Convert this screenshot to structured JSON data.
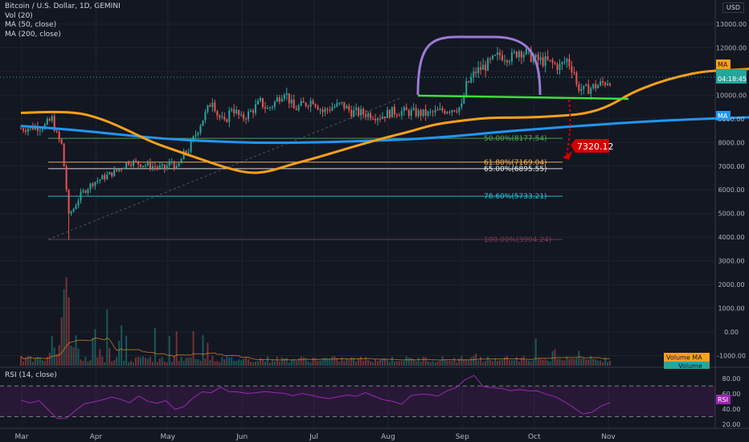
{
  "header": {
    "symbol_title": "Bitcoin / U.S. Dollar, 1D, GEMINI",
    "indicators": [
      "Vol (20)",
      "MA (50, close)",
      "MA (200, close)"
    ],
    "currency": "USD"
  },
  "rsi_panel": {
    "title": "RSI (14, close)",
    "badge": "RSI",
    "ticks": [
      "80.00",
      "60.00",
      "40.00",
      "20.00"
    ]
  },
  "price_tag": {
    "value": "7320.12"
  },
  "badges": {
    "ma50": "MA",
    "ma200": "MA",
    "countdown": "04:18:45",
    "volume_ma": "Volume MA",
    "volume": "Volume"
  },
  "colors": {
    "background": "#131722",
    "bull": "#26a69a",
    "bear": "#ef5350",
    "ma50": "#f7a01c",
    "ma200": "#2196f3",
    "neckline": "#3ede3a",
    "dome": "#9c7ad6",
    "target": "#d50000",
    "rsi": "#9c27b0"
  },
  "chart_data": {
    "type": "candlestick",
    "x_tick_labels": [
      "Mar",
      "Apr",
      "May",
      "Jun",
      "Jul",
      "Aug",
      "Sep",
      "Oct",
      "Nov"
    ],
    "y_tick_labels": [
      "13000.00",
      "12000.00",
      "11000.00",
      "10000.00",
      "9000.00",
      "8000.00",
      "7000.00",
      "6000.00",
      "5000.00",
      "4000.00",
      "3000.00",
      "2000.00",
      "1000.00",
      "0.00",
      "-1000.00"
    ],
    "ylim": [
      -1400,
      13800
    ],
    "fibonacci_levels": [
      {
        "label": "50.00%(8177.54)",
        "value": 8177.54,
        "color": "#4caf50"
      },
      {
        "label": "61.80%(7169.04)",
        "value": 7169.04,
        "color": "#ffb74d"
      },
      {
        "label": "65.00%(6895.55)",
        "value": 6895.55,
        "color": "#f0f0f0"
      },
      {
        "label": "78.60%(5733.21)",
        "value": 5733.21,
        "color": "#26c6da"
      },
      {
        "label": "100.00%(3904.24)",
        "value": 3904.24,
        "color": "#7e3b54"
      }
    ],
    "ma50": [
      [
        0,
        9250
      ],
      [
        14,
        9300
      ],
      [
        25,
        9250
      ],
      [
        35,
        8950
      ],
      [
        45,
        8500
      ],
      [
        55,
        8000
      ],
      [
        65,
        7650
      ],
      [
        75,
        7300
      ],
      [
        85,
        6950
      ],
      [
        95,
        6700
      ],
      [
        103,
        6750
      ],
      [
        112,
        7050
      ],
      [
        125,
        7400
      ],
      [
        138,
        7800
      ],
      [
        150,
        8150
      ],
      [
        162,
        8450
      ],
      [
        172,
        8750
      ],
      [
        182,
        8900
      ],
      [
        195,
        9050
      ],
      [
        210,
        9050
      ],
      [
        222,
        9100
      ],
      [
        235,
        9200
      ],
      [
        245,
        9500
      ],
      [
        255,
        10100
      ],
      [
        265,
        10500
      ],
      [
        275,
        10800
      ],
      [
        285,
        11000
      ],
      [
        294,
        11050
      ],
      [
        304,
        11100
      ],
      [
        313,
        11200
      ],
      [
        322,
        11300
      ]
    ],
    "ma200": [
      [
        0,
        8700
      ],
      [
        20,
        8550
      ],
      [
        40,
        8350
      ],
      [
        60,
        8150
      ],
      [
        80,
        8050
      ],
      [
        100,
        7980
      ],
      [
        120,
        8000
      ],
      [
        140,
        8050
      ],
      [
        160,
        8120
      ],
      [
        180,
        8250
      ],
      [
        200,
        8450
      ],
      [
        220,
        8600
      ],
      [
        240,
        8750
      ],
      [
        260,
        8880
      ],
      [
        280,
        8980
      ],
      [
        300,
        9050
      ],
      [
        322,
        9120
      ]
    ],
    "rsi_values": [
      50,
      45,
      52,
      42,
      30,
      25,
      38,
      45,
      50,
      52,
      55,
      50,
      48,
      55,
      52,
      45,
      48,
      40,
      45,
      55,
      65,
      60,
      68,
      62,
      60,
      58,
      62,
      65,
      60,
      58,
      55,
      60,
      58,
      55,
      52,
      55,
      58,
      55,
      60,
      58,
      55,
      52,
      48,
      55,
      60,
      58,
      55,
      62,
      70,
      80,
      82,
      72,
      68,
      65,
      62,
      68,
      65,
      62,
      60,
      55,
      50,
      40,
      35,
      38,
      42,
      48
    ]
  }
}
